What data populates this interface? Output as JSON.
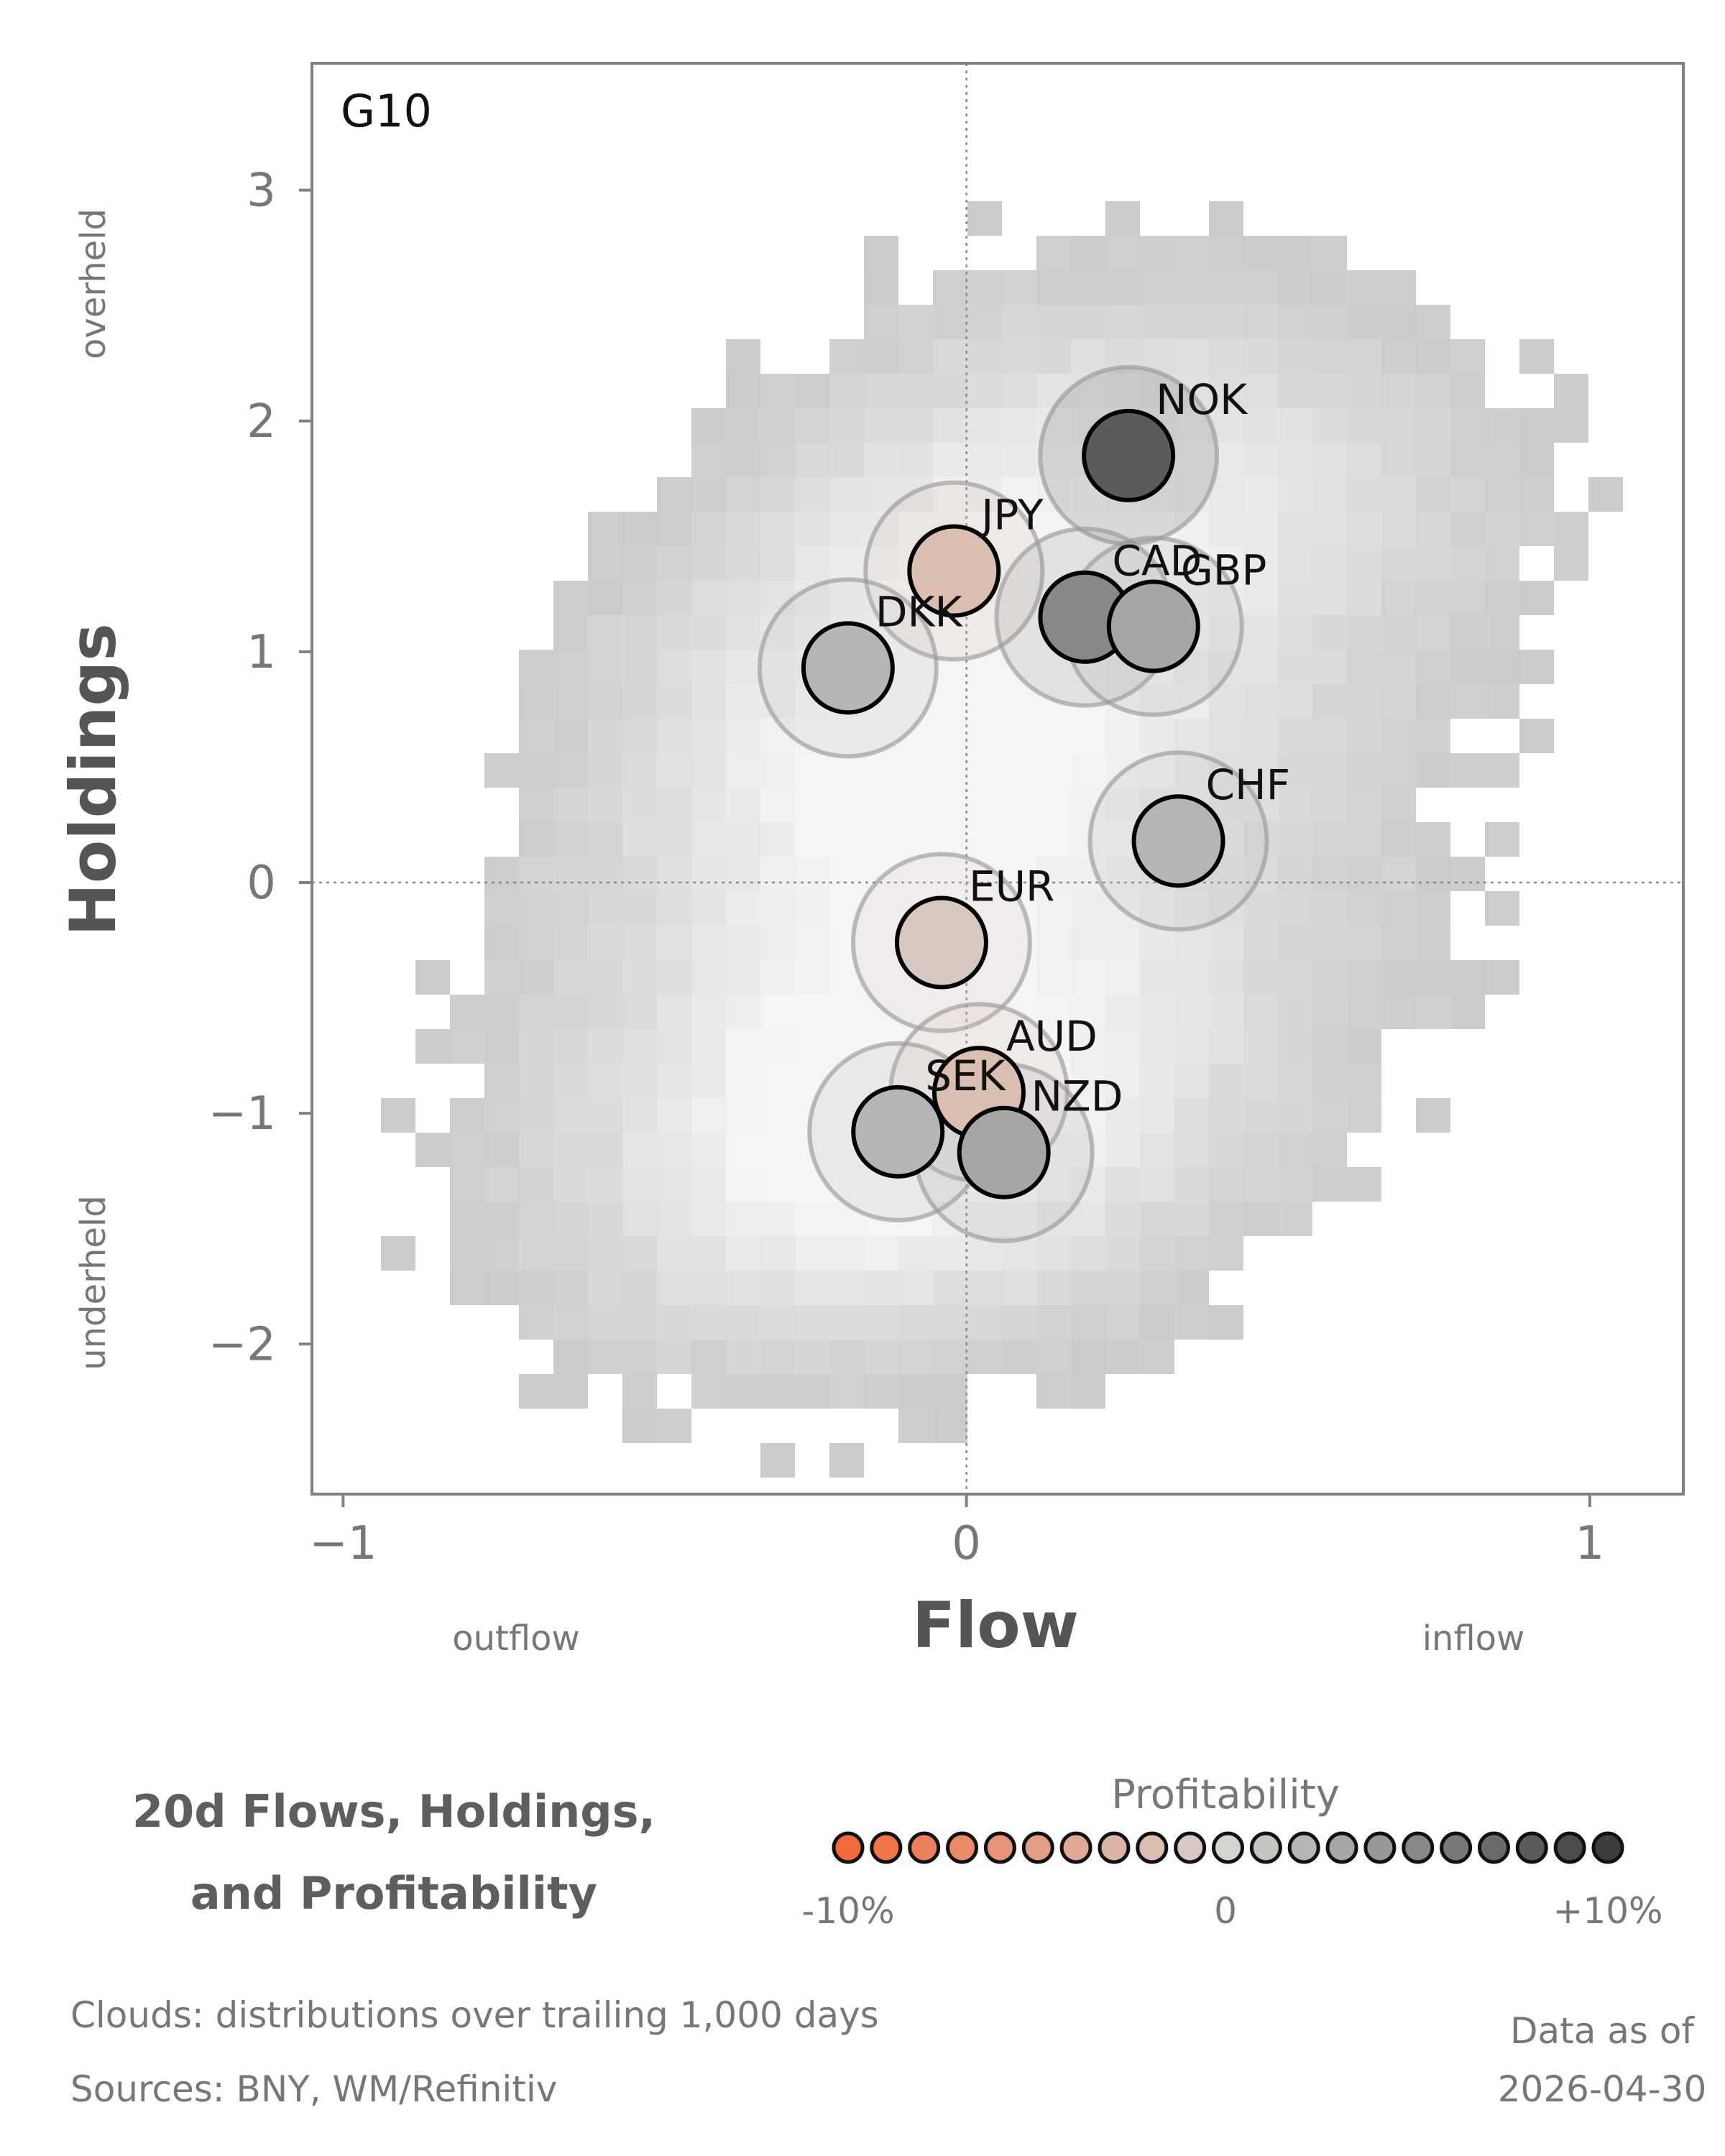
{
  "chart_data": {
    "type": "scatter",
    "panel_label": "G10",
    "xlabel": "Flow",
    "ylabel": "Holdings",
    "xlim": [
      -1.05,
      1.15
    ],
    "ylim": [
      -2.65,
      3.55
    ],
    "x_ticks": [
      -1,
      0,
      1
    ],
    "x_tick_labels": [
      "−1",
      "0",
      "1"
    ],
    "y_ticks": [
      -2,
      -1,
      0,
      1,
      2,
      3
    ],
    "y_tick_labels": [
      "−2",
      "−1",
      "0",
      "1",
      "2",
      "3"
    ],
    "x_low_label": "outflow",
    "x_high_label": "inflow",
    "y_high_label": "overheld",
    "y_low_label": "underheld",
    "reference_lines": {
      "x": 0,
      "y": 0,
      "style": "dotted"
    },
    "background": "2d histogram of distributions over trailing 1,000 days",
    "points": [
      {
        "label": "NOK",
        "x": 0.26,
        "y": 1.85,
        "profitability": 8
      },
      {
        "label": "JPY",
        "x": -0.02,
        "y": 1.35,
        "profitability": -2
      },
      {
        "label": "CAD",
        "x": 0.19,
        "y": 1.15,
        "profitability": 5
      },
      {
        "label": "GBP",
        "x": 0.3,
        "y": 1.11,
        "profitability": 3
      },
      {
        "label": "DKK",
        "x": -0.19,
        "y": 0.93,
        "profitability": 2
      },
      {
        "label": "CHF",
        "x": 0.34,
        "y": 0.18,
        "profitability": 2
      },
      {
        "label": "EUR",
        "x": -0.04,
        "y": -0.26,
        "profitability": -1
      },
      {
        "label": "AUD",
        "x": 0.02,
        "y": -0.91,
        "profitability": -2
      },
      {
        "label": "SEK",
        "x": -0.11,
        "y": -1.08,
        "profitability": 2
      },
      {
        "label": "NZD",
        "x": 0.06,
        "y": -1.17,
        "profitability": 3
      }
    ]
  },
  "title_lines": [
    "20d Flows, Holdings,",
    "and Profitability"
  ],
  "legend": {
    "title": "Profitability",
    "min_label": "-10%",
    "mid_label": "0",
    "max_label": "+10%",
    "min": -10,
    "max": 10,
    "steps": 21,
    "low_color": "#f26a3c",
    "mid_color": "#d4d3d0",
    "high_color": "#3d3d3d"
  },
  "footer": {
    "clouds": "Clouds:  distributions over trailing 1,000 days",
    "sources": "Sources:  BNY, WM/Refinitiv",
    "asof_label": "Data as of",
    "asof_date": "2026-04-30"
  }
}
